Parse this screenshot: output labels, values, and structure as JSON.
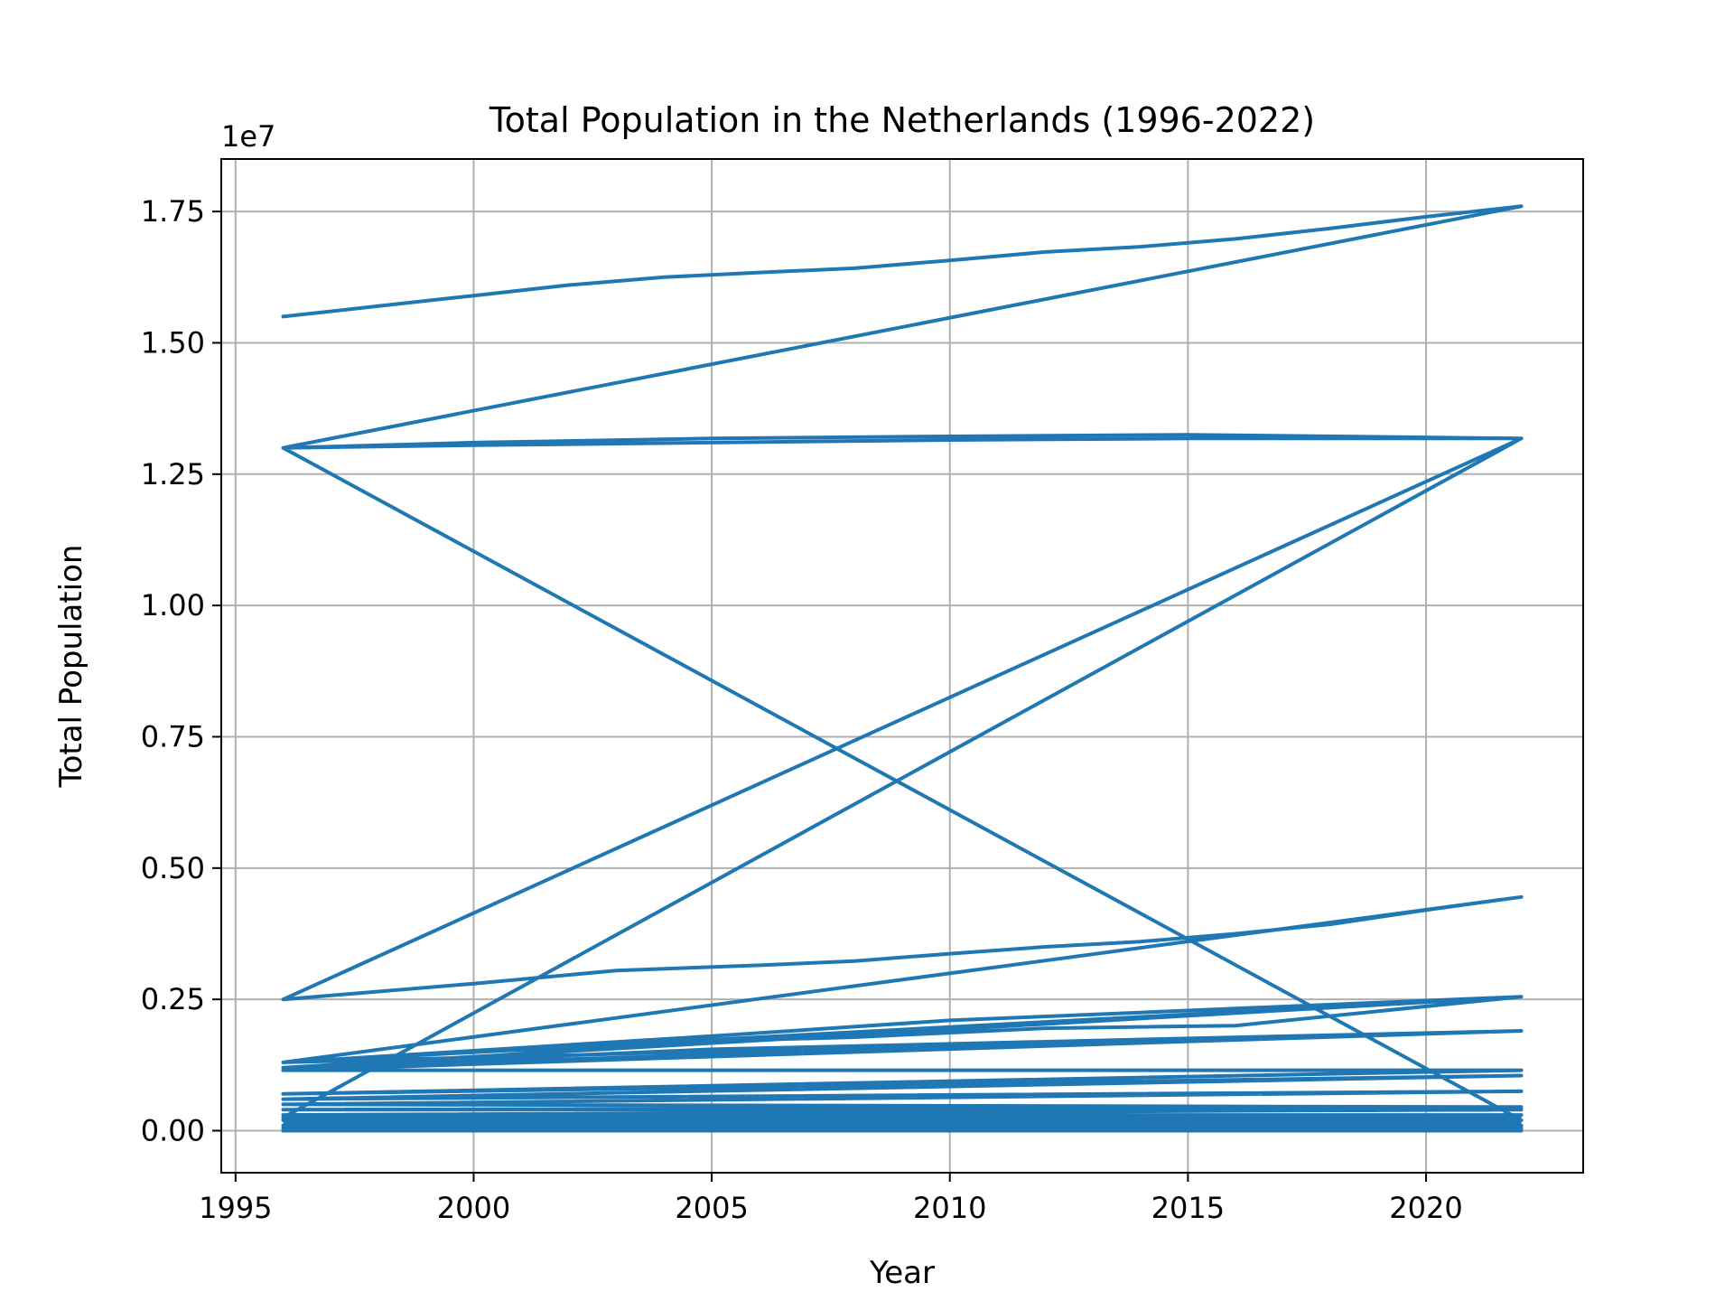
{
  "chart_data": {
    "type": "line",
    "title": "Total Population in the Netherlands (1996-2022)",
    "xlabel": "Year",
    "ylabel": "Total Population",
    "y_offset_label": "1e7",
    "xlim": [
      1994.7,
      2023.3
    ],
    "ylim": [
      -0.08,
      1.85
    ],
    "x_ticks": [
      1995,
      2000,
      2005,
      2010,
      2015,
      2020
    ],
    "x_tick_labels": [
      "1995",
      "2000",
      "2005",
      "2010",
      "2015",
      "2020"
    ],
    "y_ticks": [
      0,
      0.25,
      0.5,
      0.75,
      1.0,
      1.25,
      1.5,
      1.75
    ],
    "y_tick_labels": [
      "0.00",
      "0.25",
      "0.50",
      "0.75",
      "1.00",
      "1.25",
      "1.50",
      "1.75"
    ],
    "grid": true,
    "line_color": "#1f77b4",
    "series": [
      {
        "values_unit": "1e7",
        "points": [
          [
            1996,
            1.55
          ],
          [
            1998,
            1.57
          ],
          [
            2000,
            1.59
          ],
          [
            2002,
            1.61
          ],
          [
            2004,
            1.625
          ],
          [
            2006,
            1.634
          ],
          [
            2008,
            1.642
          ],
          [
            2010,
            1.657
          ],
          [
            2012,
            1.673
          ],
          [
            2014,
            1.683
          ],
          [
            2016,
            1.698
          ],
          [
            2018,
            1.718
          ],
          [
            2020,
            1.74
          ],
          [
            2022,
            1.76
          ],
          [
            1996,
            1.3
          ],
          [
            2000,
            1.305
          ],
          [
            2005,
            1.31
          ],
          [
            2010,
            1.315
          ],
          [
            2015,
            1.318
          ],
          [
            2022,
            1.318
          ],
          [
            2015,
            1.325
          ],
          [
            2010,
            1.322
          ],
          [
            2005,
            1.318
          ],
          [
            2000,
            1.31
          ],
          [
            1996,
            1.3
          ],
          [
            2022,
            0.02
          ],
          [
            2015,
            0.024
          ],
          [
            2005,
            0.026
          ],
          [
            1996,
            0.025
          ],
          [
            2022,
            1.318
          ],
          [
            1996,
            0.25
          ],
          [
            2000,
            0.28
          ],
          [
            2003,
            0.305
          ],
          [
            2006,
            0.315
          ],
          [
            2008,
            0.323
          ],
          [
            2010,
            0.337
          ],
          [
            2012,
            0.35
          ],
          [
            2014,
            0.36
          ],
          [
            2016,
            0.375
          ],
          [
            2018,
            0.393
          ],
          [
            2020,
            0.42
          ],
          [
            2022,
            0.445
          ],
          [
            1996,
            0.13
          ],
          [
            2022,
            0.255
          ],
          [
            2010,
            0.21
          ],
          [
            2005,
            0.18
          ],
          [
            1996,
            0.13
          ],
          [
            2022,
            0.19
          ],
          [
            2005,
            0.155
          ],
          [
            1996,
            0.12
          ],
          [
            2022,
            0.255
          ],
          [
            2016,
            0.2
          ],
          [
            2012,
            0.195
          ],
          [
            2008,
            0.178
          ],
          [
            2004,
            0.168
          ],
          [
            2000,
            0.14
          ],
          [
            1996,
            0.12
          ],
          [
            2022,
            0.19
          ],
          [
            1996,
            0.115
          ],
          [
            2022,
            0.115
          ],
          [
            1996,
            0.07
          ],
          [
            2022,
            0.105
          ],
          [
            1996,
            0.06
          ],
          [
            2022,
            0.075
          ],
          [
            1996,
            0.05
          ],
          [
            2022,
            0.045
          ],
          [
            1996,
            0.04
          ],
          [
            2022,
            0.04
          ],
          [
            1996,
            0.03
          ],
          [
            2022,
            0.03
          ],
          [
            1996,
            0.02
          ],
          [
            2022,
            0.02
          ],
          [
            1996,
            0.01
          ],
          [
            2022,
            0.01
          ],
          [
            1996,
            0.005
          ],
          [
            2022,
            0.005
          ],
          [
            1996,
            0.0
          ],
          [
            2022,
            0.0
          ]
        ]
      }
    ]
  }
}
